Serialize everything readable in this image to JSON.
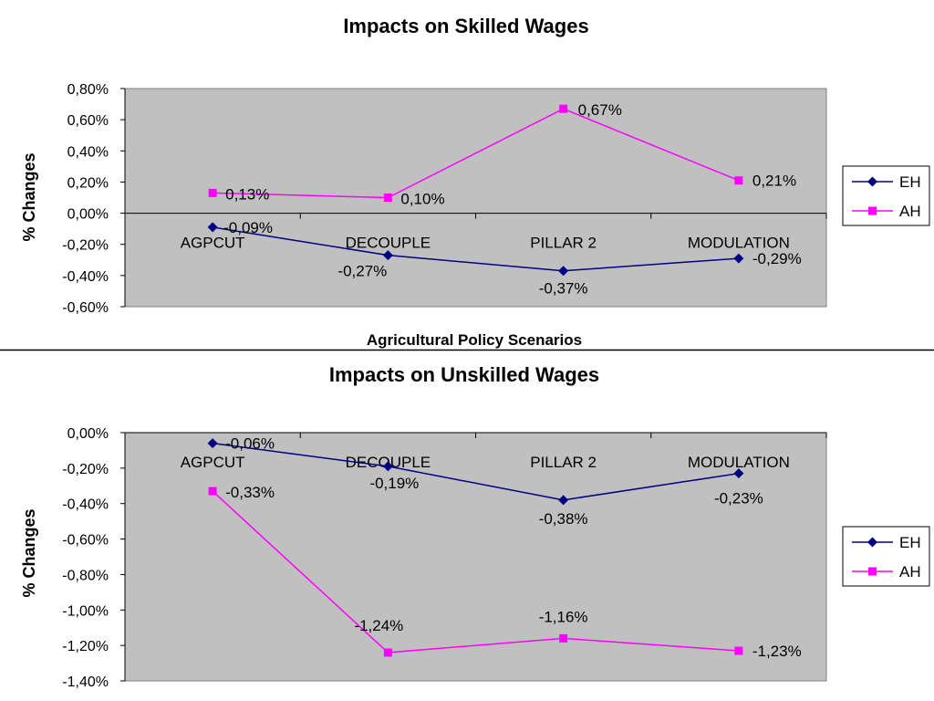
{
  "chart_data": [
    {
      "type": "line",
      "title": "Impacts on Skilled Wages",
      "xlabel": "Agricultural Policy Scenarios",
      "ylabel": "% Changes",
      "categories": [
        "AGPCUT",
        "DECOUPLE",
        "PILLAR 2",
        "MODULATION"
      ],
      "ylim": [
        -0.6,
        0.8
      ],
      "yticks": [
        "0,80%",
        "0,60%",
        "0,40%",
        "0,20%",
        "0,00%",
        "-0,20%",
        "-0,40%",
        "-0,60%"
      ],
      "grid": false,
      "legend": "right",
      "series": [
        {
          "name": "EH",
          "color": "#000080",
          "values": [
            -0.09,
            -0.27,
            -0.37,
            -0.29
          ],
          "labels": [
            "-0,09%",
            "-0,27%",
            "-0,37%",
            "-0,29%"
          ]
        },
        {
          "name": "AH",
          "color": "#FF00FF",
          "values": [
            0.13,
            0.1,
            0.67,
            0.21
          ],
          "labels": [
            "0,13%",
            "0,10%",
            "0,67%",
            "0,21%"
          ]
        }
      ]
    },
    {
      "type": "line",
      "title": "Impacts on Unskilled Wages",
      "xlabel": "",
      "ylabel": "% Changes",
      "categories": [
        "AGPCUT",
        "DECOUPLE",
        "PILLAR 2",
        "MODULATION"
      ],
      "ylim": [
        -1.4,
        0.0
      ],
      "yticks": [
        "0,00%",
        "-0,20%",
        "-0,40%",
        "-0,60%",
        "-0,80%",
        "-1,00%",
        "-1,20%",
        "-1,40%"
      ],
      "grid": false,
      "legend": "right",
      "series": [
        {
          "name": "EH",
          "color": "#000080",
          "values": [
            -0.06,
            -0.19,
            -0.38,
            -0.23
          ],
          "labels": [
            "-0,06%",
            "-0,19%",
            "-0,38%",
            "-0,23%"
          ]
        },
        {
          "name": "AH",
          "color": "#FF00FF",
          "values": [
            -0.33,
            -1.24,
            -1.16,
            -1.23
          ],
          "labels": [
            "-0,33%",
            "-1,24%",
            "-1,16%",
            "-1,23%"
          ]
        }
      ]
    }
  ]
}
